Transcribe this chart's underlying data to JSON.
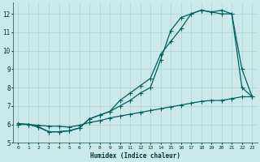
{
  "xlabel": "Humidex (Indice chaleur)",
  "background_color": "#cce9e9",
  "grid_color": "#aad4d4",
  "line_color": "#006060",
  "xlim": [
    -0.5,
    23.5
  ],
  "ylim": [
    5.0,
    12.6
  ],
  "yticks": [
    5,
    6,
    7,
    8,
    9,
    10,
    11,
    12
  ],
  "xticks": [
    0,
    1,
    2,
    3,
    4,
    5,
    6,
    7,
    8,
    9,
    10,
    11,
    12,
    13,
    14,
    15,
    16,
    17,
    18,
    19,
    20,
    21,
    22,
    23
  ],
  "line1_x": [
    0,
    1,
    2,
    3,
    4,
    5,
    6,
    7,
    8,
    9,
    10,
    11,
    12,
    13,
    14,
    15,
    16,
    17,
    18,
    19,
    20,
    21,
    22,
    23
  ],
  "line1_y": [
    6.0,
    6.0,
    5.85,
    5.6,
    5.6,
    5.65,
    5.8,
    6.3,
    6.5,
    6.7,
    7.3,
    7.7,
    8.1,
    8.5,
    9.8,
    10.5,
    11.2,
    12.0,
    12.2,
    12.1,
    12.2,
    12.0,
    9.0,
    7.5
  ],
  "line2_x": [
    0,
    1,
    2,
    3,
    4,
    5,
    6,
    7,
    8,
    9,
    10,
    11,
    12,
    13,
    14,
    15,
    16,
    17,
    18,
    19,
    20,
    21,
    22,
    23
  ],
  "line2_y": [
    6.0,
    6.0,
    5.85,
    5.6,
    5.6,
    5.65,
    5.8,
    6.3,
    6.5,
    6.7,
    7.0,
    7.3,
    7.7,
    8.0,
    9.5,
    11.1,
    11.8,
    12.0,
    12.2,
    12.1,
    12.0,
    12.0,
    8.0,
    7.5
  ],
  "line3_x": [
    0,
    1,
    2,
    3,
    4,
    5,
    6,
    7,
    8,
    9,
    10,
    11,
    12,
    13,
    14,
    15,
    16,
    17,
    18,
    19,
    20,
    21,
    22,
    23
  ],
  "line3_y": [
    6.05,
    6.0,
    5.95,
    5.9,
    5.9,
    5.85,
    5.95,
    6.1,
    6.2,
    6.35,
    6.45,
    6.55,
    6.65,
    6.75,
    6.85,
    6.95,
    7.05,
    7.15,
    7.25,
    7.3,
    7.3,
    7.4,
    7.5,
    7.5
  ]
}
